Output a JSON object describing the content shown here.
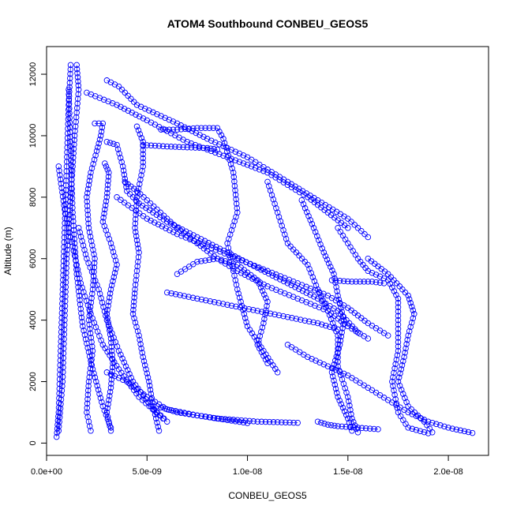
{
  "chart_data": {
    "type": "scatter",
    "title": "ATOM4 Southbound CONBEU_GEOS5",
    "xlabel": "CONBEU_GEOS5",
    "ylabel": "Altitude (m)",
    "xlim": [
      0,
      2.2e-08
    ],
    "ylim": [
      -400,
      12900
    ],
    "x_ticks": [
      0,
      5e-09,
      1e-08,
      1.5e-08,
      2e-08
    ],
    "x_tick_labels": [
      "0.0e+00",
      "5.0e-09",
      "1.0e-08",
      "1.5e-08",
      "2.0e-08"
    ],
    "y_ticks": [
      0,
      2000,
      4000,
      6000,
      8000,
      10000,
      12000
    ],
    "y_tick_labels": [
      "0",
      "2000",
      "4000",
      "6000",
      "8000",
      "10000",
      "12000"
    ],
    "grid": false,
    "point_color": "#0000ff",
    "marker": "open-circle",
    "series": [
      {
        "points": [
          [
            1.2e-09,
            12300
          ],
          [
            1.1e-09,
            11000
          ],
          [
            1e-09,
            9000
          ],
          [
            9e-10,
            7000
          ],
          [
            8e-10,
            5000
          ],
          [
            7e-10,
            3000
          ],
          [
            6e-10,
            1000
          ],
          [
            5e-10,
            200
          ]
        ]
      },
      {
        "points": [
          [
            1.5e-09,
            12300
          ],
          [
            1.6e-09,
            11500
          ],
          [
            1.4e-09,
            10000
          ],
          [
            1.2e-09,
            8000
          ],
          [
            1e-09,
            6000
          ],
          [
            9e-10,
            4000
          ],
          [
            8e-10,
            2000
          ],
          [
            6e-10,
            400
          ]
        ]
      },
      {
        "points": [
          [
            3e-09,
            11800
          ],
          [
            3.6e-09,
            11600
          ],
          [
            4.5e-09,
            11000
          ],
          [
            6.5e-09,
            10400
          ],
          [
            8e-09,
            9900
          ],
          [
            1e-08,
            9300
          ],
          [
            1.2e-08,
            8500
          ],
          [
            1.35e-08,
            7900
          ],
          [
            1.5e-08,
            7300
          ],
          [
            1.6e-08,
            6700
          ]
        ]
      },
      {
        "points": [
          [
            2e-09,
            11400
          ],
          [
            3.5e-09,
            11000
          ],
          [
            5e-09,
            10500
          ],
          [
            7e-09,
            9800
          ],
          [
            9e-09,
            9300
          ],
          [
            1.1e-08,
            8800
          ],
          [
            1.3e-08,
            8000
          ],
          [
            1.4e-08,
            7500
          ],
          [
            1.5e-08,
            7000
          ]
        ]
      },
      {
        "points": [
          [
            5.7e-09,
            10200
          ],
          [
            6.5e-09,
            10200
          ],
          [
            7.5e-09,
            10250
          ],
          [
            8.5e-09,
            10250
          ],
          [
            8.8e-09,
            9900
          ],
          [
            9.3e-09,
            8800
          ],
          [
            9.5e-09,
            7500
          ],
          [
            9e-09,
            6500
          ],
          [
            9.5e-09,
            5000
          ],
          [
            1e-08,
            3800
          ],
          [
            1.08e-08,
            3000
          ],
          [
            1.15e-08,
            2300
          ]
        ]
      },
      {
        "points": [
          [
            4.8e-09,
            9700
          ],
          [
            6e-09,
            9650
          ],
          [
            7e-09,
            9620
          ],
          [
            8e-09,
            9600
          ],
          [
            8.5e-09,
            9550
          ]
        ]
      },
      {
        "points": [
          [
            4.5e-09,
            10300
          ],
          [
            4.8e-09,
            9800
          ],
          [
            4.8e-09,
            9000
          ],
          [
            4.5e-09,
            8000
          ],
          [
            4.4e-09,
            7000
          ],
          [
            4.6e-09,
            6200
          ],
          [
            4.4e-09,
            5000
          ],
          [
            4.3e-09,
            4200
          ],
          [
            4.6e-09,
            3500
          ],
          [
            4.8e-09,
            2800
          ],
          [
            5.1e-09,
            2000
          ],
          [
            5.3e-09,
            1200
          ],
          [
            5.6e-09,
            400
          ]
        ]
      },
      {
        "points": [
          [
            3e-09,
            9800
          ],
          [
            3.5e-09,
            9700
          ],
          [
            3.8e-09,
            9000
          ],
          [
            4e-09,
            8200
          ],
          [
            4.6e-09,
            7800
          ],
          [
            6e-09,
            7200
          ],
          [
            7.5e-09,
            6700
          ],
          [
            9e-09,
            6200
          ],
          [
            1.05e-08,
            5700
          ],
          [
            1.2e-08,
            5200
          ],
          [
            1.35e-08,
            4700
          ],
          [
            1.45e-08,
            4300
          ],
          [
            1.55e-08,
            3600
          ]
        ]
      },
      {
        "points": [
          [
            2.9e-09,
            9100
          ],
          [
            3.1e-09,
            8800
          ],
          [
            3e-09,
            8000
          ],
          [
            2.8e-09,
            7200
          ],
          [
            3.2e-09,
            6500
          ],
          [
            3.5e-09,
            5800
          ],
          [
            3.2e-09,
            5000
          ],
          [
            3e-09,
            4200
          ],
          [
            3.2e-09,
            3400
          ],
          [
            3.3e-09,
            2600
          ],
          [
            3.2e-09,
            1800
          ],
          [
            3e-09,
            1000
          ],
          [
            3.2e-09,
            400
          ]
        ]
      },
      {
        "points": [
          [
            2.4e-09,
            10400
          ],
          [
            2.8e-09,
            10400
          ],
          [
            2.7e-09,
            10000
          ],
          [
            2.5e-09,
            9500
          ],
          [
            2.2e-09,
            8800
          ],
          [
            2e-09,
            8000
          ],
          [
            2.1e-09,
            7000
          ],
          [
            2.4e-09,
            6000
          ],
          [
            2.3e-09,
            5000
          ],
          [
            2.1e-09,
            4000
          ],
          [
            2.3e-09,
            3000
          ],
          [
            2.1e-09,
            2000
          ],
          [
            2e-09,
            1000
          ],
          [
            2.2e-09,
            400
          ]
        ]
      },
      {
        "points": [
          [
            3.9e-09,
            8500
          ],
          [
            4.5e-09,
            8200
          ],
          [
            5.5e-09,
            7600
          ],
          [
            6.5e-09,
            7000
          ],
          [
            7.5e-09,
            6500
          ],
          [
            8.5e-09,
            6000
          ],
          [
            9.5e-09,
            5600
          ],
          [
            1.1e-08,
            5100
          ],
          [
            1.25e-08,
            4700
          ],
          [
            1.4e-08,
            4300
          ],
          [
            1.5e-08,
            3800
          ],
          [
            1.6e-08,
            3400
          ]
        ]
      },
      {
        "points": [
          [
            3.5e-09,
            8000
          ],
          [
            5e-09,
            7300
          ],
          [
            6.5e-09,
            6800
          ],
          [
            8e-09,
            6400
          ],
          [
            9.5e-09,
            6000
          ],
          [
            1.1e-08,
            5600
          ],
          [
            1.25e-08,
            5200
          ],
          [
            1.4e-08,
            4800
          ],
          [
            1.5e-08,
            4400
          ],
          [
            1.6e-08,
            3900
          ],
          [
            1.7e-08,
            3500
          ]
        ]
      },
      {
        "points": [
          [
            1.1e-08,
            8500
          ],
          [
            1.15e-08,
            7500
          ],
          [
            1.2e-08,
            6500
          ],
          [
            1.3e-08,
            5800
          ],
          [
            1.35e-08,
            5000
          ],
          [
            1.4e-08,
            4300
          ],
          [
            1.45e-08,
            3500
          ],
          [
            1.45e-08,
            2500
          ],
          [
            1.5e-08,
            1500
          ],
          [
            1.52e-08,
            800
          ],
          [
            1.55e-08,
            350
          ]
        ]
      },
      {
        "points": [
          [
            1.27e-08,
            7900
          ],
          [
            1.33e-08,
            7000
          ],
          [
            1.38e-08,
            6200
          ],
          [
            1.43e-08,
            5500
          ],
          [
            1.45e-08,
            4800
          ],
          [
            1.48e-08,
            4000
          ],
          [
            1.46e-08,
            3200
          ],
          [
            1.42e-08,
            2300
          ],
          [
            1.45e-08,
            1500
          ],
          [
            1.5e-08,
            800
          ],
          [
            1.52e-08,
            400
          ]
        ]
      },
      {
        "points": [
          [
            1.45e-08,
            7000
          ],
          [
            1.5e-08,
            6500
          ],
          [
            1.55e-08,
            6000
          ],
          [
            1.6e-08,
            5600
          ],
          [
            1.7e-08,
            5300
          ],
          [
            1.75e-08,
            4700
          ],
          [
            1.75e-08,
            4000
          ],
          [
            1.75e-08,
            3000
          ],
          [
            1.72e-08,
            2000
          ],
          [
            1.75e-08,
            1000
          ],
          [
            1.8e-08,
            500
          ],
          [
            1.9e-08,
            320
          ]
        ]
      },
      {
        "points": [
          [
            1.6e-08,
            6000
          ],
          [
            1.7e-08,
            5500
          ],
          [
            1.8e-08,
            4800
          ],
          [
            1.83e-08,
            4200
          ],
          [
            1.8e-08,
            3500
          ],
          [
            1.78e-08,
            2800
          ],
          [
            1.75e-08,
            2000
          ],
          [
            1.8e-08,
            1200
          ],
          [
            1.88e-08,
            700
          ],
          [
            1.92e-08,
            350
          ]
        ]
      },
      {
        "points": [
          [
            1.42e-08,
            5300
          ],
          [
            1.52e-08,
            5250
          ],
          [
            1.62e-08,
            5250
          ],
          [
            1.68e-08,
            5200
          ]
        ]
      },
      {
        "points": [
          [
            6e-09,
            4900
          ],
          [
            7.5e-09,
            4700
          ],
          [
            9e-09,
            4500
          ],
          [
            1.05e-08,
            4300
          ],
          [
            1.2e-08,
            4100
          ],
          [
            1.35e-08,
            3900
          ],
          [
            1.45e-08,
            3700
          ]
        ]
      },
      {
        "points": [
          [
            6.5e-09,
            5500
          ],
          [
            7.5e-09,
            5900
          ],
          [
            8.5e-09,
            6000
          ],
          [
            9.5e-09,
            5800
          ],
          [
            1.05e-08,
            5300
          ],
          [
            1.1e-08,
            4600
          ],
          [
            1.08e-08,
            3900
          ],
          [
            1.05e-08,
            3200
          ],
          [
            1.1e-08,
            2600
          ]
        ]
      },
      {
        "points": [
          [
            1.2e-08,
            3200
          ],
          [
            1.3e-08,
            2800
          ],
          [
            1.4e-08,
            2500
          ],
          [
            1.5e-08,
            2200
          ],
          [
            1.6e-08,
            1800
          ],
          [
            1.7e-08,
            1400
          ],
          [
            1.8e-08,
            1000
          ],
          [
            1.9e-08,
            700
          ],
          [
            2e-08,
            500
          ],
          [
            2.12e-08,
            330
          ]
        ]
      },
      {
        "points": [
          [
            5.5e-09,
            1200
          ],
          [
            6.5e-09,
            1000
          ],
          [
            7.5e-09,
            900
          ],
          [
            8.5e-09,
            800
          ],
          [
            9.5e-09,
            750
          ],
          [
            1.05e-08,
            700
          ],
          [
            1.15e-08,
            680
          ],
          [
            1.25e-08,
            660
          ]
        ]
      },
      {
        "points": [
          [
            3e-09,
            2300
          ],
          [
            4e-09,
            2000
          ],
          [
            5e-09,
            1500
          ],
          [
            6e-09,
            1100
          ],
          [
            7.5e-09,
            900
          ],
          [
            9e-09,
            750
          ],
          [
            1e-08,
            650
          ]
        ]
      },
      {
        "points": [
          [
            1.6e-09,
            7000
          ],
          [
            2e-09,
            6000
          ],
          [
            2.6e-09,
            5000
          ],
          [
            3e-09,
            4000
          ],
          [
            3.6e-09,
            3000
          ],
          [
            4.3e-09,
            2000
          ],
          [
            5.2e-09,
            1200
          ],
          [
            6e-09,
            700
          ]
        ]
      },
      {
        "points": [
          [
            6e-10,
            9000
          ],
          [
            9e-10,
            7600
          ],
          [
            1.3e-09,
            6400
          ],
          [
            1.7e-09,
            5200
          ],
          [
            2.2e-09,
            4200
          ],
          [
            2.8e-09,
            3200
          ],
          [
            3.6e-09,
            2400
          ],
          [
            4.6e-09,
            1500
          ],
          [
            5.8e-09,
            800
          ]
        ]
      },
      {
        "points": [
          [
            1.35e-08,
            700
          ],
          [
            1.4e-08,
            600
          ],
          [
            1.45e-08,
            550
          ],
          [
            1.55e-08,
            500
          ],
          [
            1.65e-08,
            450
          ]
        ]
      },
      {
        "points": [
          [
            1.1e-09,
            11500
          ],
          [
            1.2e-09,
            9500
          ],
          [
            1.3e-09,
            7500
          ],
          [
            1.5e-09,
            5500
          ],
          [
            1.8e-09,
            3800
          ],
          [
            2.3e-09,
            2400
          ],
          [
            2.8e-09,
            1200
          ],
          [
            3.2e-09,
            500
          ]
        ]
      }
    ]
  }
}
